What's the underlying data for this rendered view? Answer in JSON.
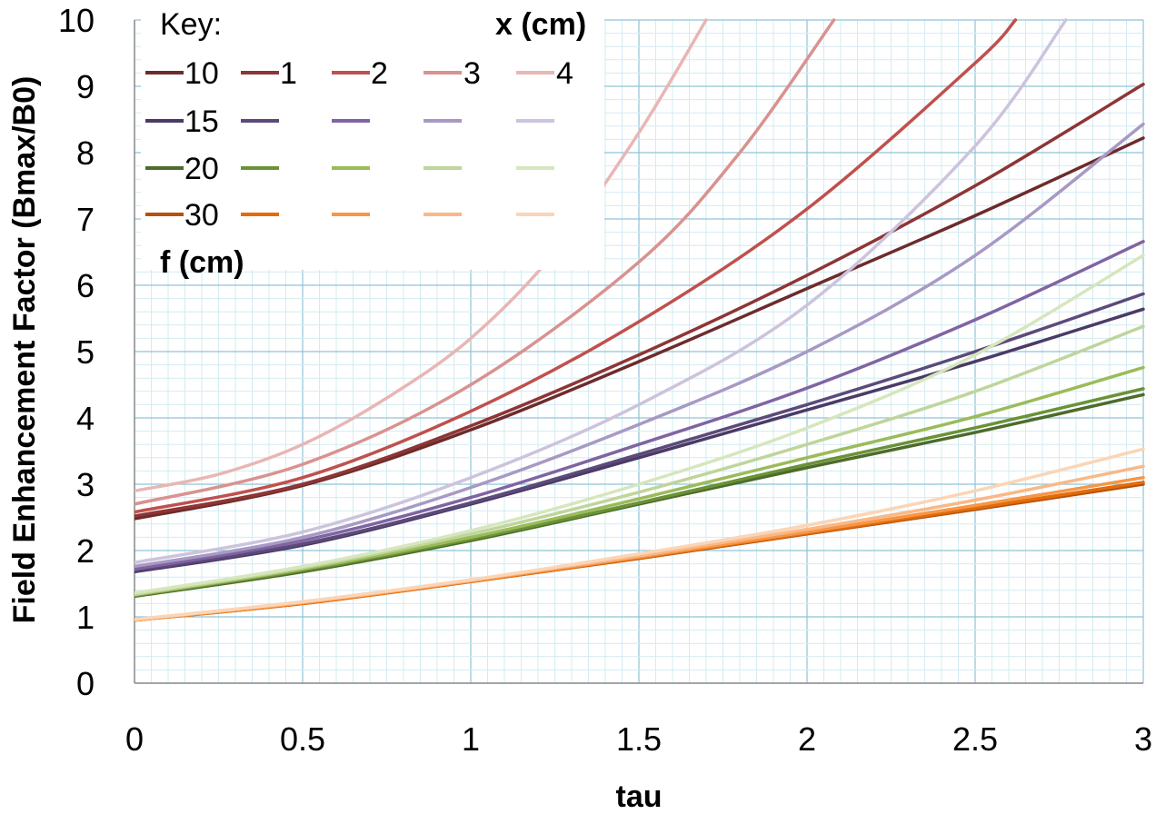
{
  "chart_data": {
    "type": "line",
    "xlabel": "tau",
    "ylabel": "Field Enhancement Factor (Bmax/B0)",
    "xlim": [
      0,
      3
    ],
    "ylim": [
      0,
      10
    ],
    "x_ticks": [
      "0",
      "0.5",
      "1",
      "1.5",
      "2",
      "2.5",
      "3"
    ],
    "y_ticks": [
      "0",
      "1",
      "2",
      "3",
      "4",
      "5",
      "6",
      "7",
      "8",
      "9",
      "10"
    ],
    "grid": true,
    "legend": {
      "placement": "top-left",
      "key_label": "Key:",
      "x_header": "x (cm)",
      "f_header": "f (cm)",
      "x_values": [
        "1",
        "2",
        "3",
        "4"
      ],
      "f_values": [
        "10",
        "15",
        "20",
        "30"
      ]
    },
    "series": [
      {
        "color": "#6e2b2b",
        "x": [
          0,
          0.5,
          1,
          1.5,
          2,
          2.5,
          3
        ],
        "y": [
          2.48,
          2.98,
          3.82,
          4.85,
          5.95,
          7.05,
          8.22
        ]
      },
      {
        "color": "#8e3535",
        "x": [
          0,
          0.5,
          1,
          1.5,
          2,
          2.5,
          3
        ],
        "y": [
          2.52,
          3.0,
          3.88,
          4.95,
          6.15,
          7.5,
          9.03
        ]
      },
      {
        "color": "#c0504d",
        "x": [
          0,
          0.5,
          1,
          1.5,
          2,
          2.5,
          2.62
        ],
        "y": [
          2.58,
          3.1,
          4.1,
          5.45,
          7.15,
          9.35,
          10
        ]
      },
      {
        "color": "#d9928f",
        "x": [
          0,
          0.5,
          1,
          1.5,
          1.8,
          2.08
        ],
        "y": [
          2.7,
          3.3,
          4.5,
          6.35,
          8.0,
          10
        ]
      },
      {
        "color": "#e8b6b4",
        "x": [
          0,
          0.25,
          0.5,
          0.75,
          1,
          1.25,
          1.5,
          1.7
        ],
        "y": [
          2.9,
          3.15,
          3.6,
          4.3,
          5.2,
          6.5,
          8.3,
          10
        ]
      },
      {
        "color": "#4b3a66",
        "x": [
          0,
          0.5,
          1,
          1.5,
          2,
          2.5,
          3
        ],
        "y": [
          1.68,
          2.08,
          2.7,
          3.4,
          4.12,
          4.85,
          5.64
        ]
      },
      {
        "color": "#5c4a7a",
        "x": [
          0,
          0.5,
          1,
          1.5,
          2,
          2.5,
          3
        ],
        "y": [
          1.7,
          2.1,
          2.72,
          3.45,
          4.2,
          5.0,
          5.87
        ]
      },
      {
        "color": "#8064a2",
        "x": [
          0,
          0.5,
          1,
          1.5,
          2,
          2.5,
          3
        ],
        "y": [
          1.72,
          2.15,
          2.8,
          3.6,
          4.45,
          5.48,
          6.66
        ]
      },
      {
        "color": "#a899c4",
        "x": [
          0,
          0.5,
          1,
          1.5,
          2,
          2.5,
          3
        ],
        "y": [
          1.76,
          2.2,
          2.95,
          3.9,
          5.0,
          6.45,
          8.43
        ]
      },
      {
        "color": "#cdc3dd",
        "x": [
          0,
          0.5,
          1,
          1.5,
          2,
          2.5,
          2.77
        ],
        "y": [
          1.82,
          2.28,
          3.1,
          4.2,
          5.7,
          8.1,
          10
        ]
      },
      {
        "color": "#4e6b2b",
        "x": [
          0,
          0.5,
          1,
          1.5,
          2,
          2.5,
          3
        ],
        "y": [
          1.31,
          1.68,
          2.15,
          2.7,
          3.25,
          3.78,
          4.35
        ]
      },
      {
        "color": "#6a9236",
        "x": [
          0,
          0.5,
          1,
          1.5,
          2,
          2.5,
          3
        ],
        "y": [
          1.32,
          1.7,
          2.17,
          2.72,
          3.3,
          3.85,
          4.44
        ]
      },
      {
        "color": "#9bbb59",
        "x": [
          0,
          0.5,
          1,
          1.5,
          2,
          2.5,
          3
        ],
        "y": [
          1.33,
          1.72,
          2.2,
          2.78,
          3.4,
          4.02,
          4.76
        ]
      },
      {
        "color": "#bfd59b",
        "x": [
          0,
          0.5,
          1,
          1.5,
          2,
          2.5,
          3
        ],
        "y": [
          1.34,
          1.74,
          2.25,
          2.88,
          3.6,
          4.4,
          5.38
        ]
      },
      {
        "color": "#d6e6bd",
        "x": [
          0,
          0.5,
          1,
          1.5,
          2,
          2.5,
          3
        ],
        "y": [
          1.36,
          1.76,
          2.3,
          3.0,
          3.85,
          4.95,
          6.45
        ]
      },
      {
        "color": "#b5520e",
        "x": [
          0,
          0.5,
          1,
          1.5,
          2,
          2.5,
          3
        ],
        "y": [
          0.95,
          1.2,
          1.53,
          1.88,
          2.25,
          2.62,
          3.0
        ]
      },
      {
        "color": "#e36c09",
        "x": [
          0,
          0.5,
          1,
          1.5,
          2,
          2.5,
          3
        ],
        "y": [
          0.95,
          1.2,
          1.53,
          1.89,
          2.26,
          2.64,
          3.03
        ]
      },
      {
        "color": "#f79646",
        "x": [
          0,
          0.5,
          1,
          1.5,
          2,
          2.5,
          3
        ],
        "y": [
          0.95,
          1.21,
          1.54,
          1.9,
          2.28,
          2.68,
          3.1
        ]
      },
      {
        "color": "#f9b886",
        "x": [
          0,
          0.5,
          1,
          1.5,
          2,
          2.5,
          3
        ],
        "y": [
          0.96,
          1.22,
          1.55,
          1.92,
          2.32,
          2.76,
          3.27
        ]
      },
      {
        "color": "#fbd5b5",
        "x": [
          0,
          0.5,
          1,
          1.5,
          2,
          2.5,
          3
        ],
        "y": [
          0.96,
          1.23,
          1.56,
          1.95,
          2.38,
          2.9,
          3.53
        ]
      }
    ],
    "legend_grid": [
      [
        "#6e2b2b",
        "#8e3535",
        "#c0504d",
        "#d9928f",
        "#e8b6b4"
      ],
      [
        "#4b3a66",
        "#5c4a7a",
        "#8064a2",
        "#a899c4",
        "#cdc3dd"
      ],
      [
        "#4e6b2b",
        "#6a9236",
        "#9bbb59",
        "#bfd59b",
        "#d6e6bd"
      ],
      [
        "#b5520e",
        "#e36c09",
        "#f79646",
        "#f9b886",
        "#fbd5b5"
      ]
    ]
  }
}
